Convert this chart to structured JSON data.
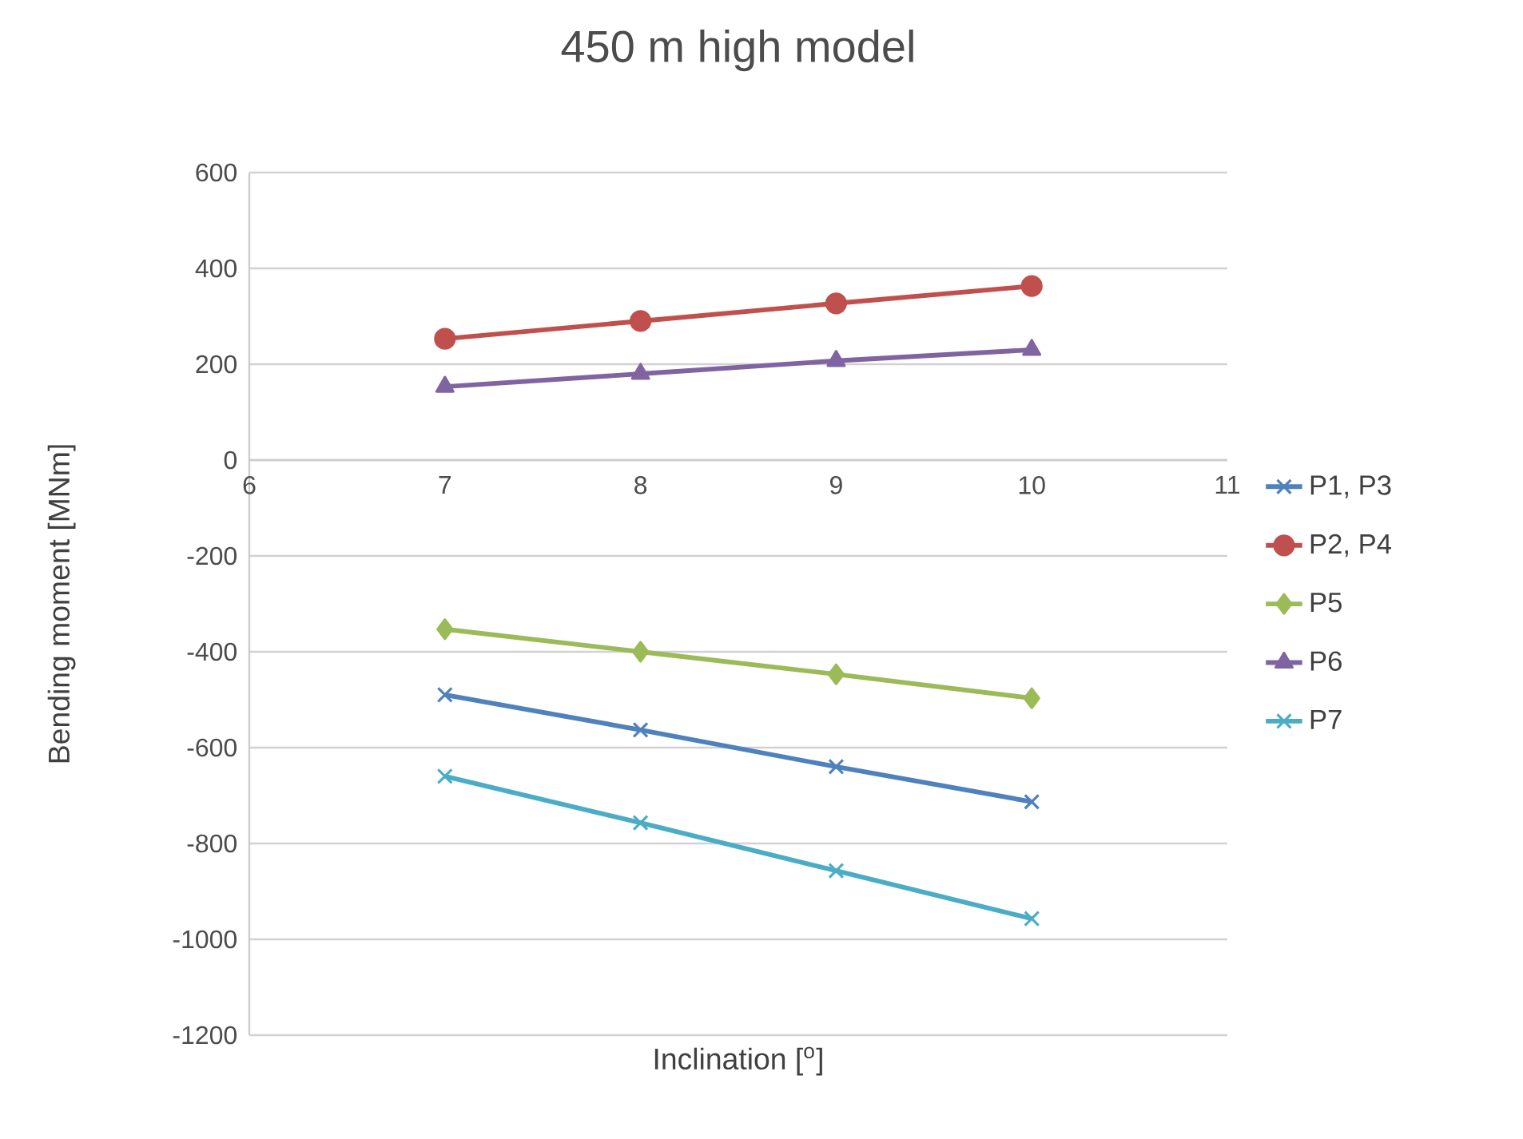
{
  "chart_data": {
    "type": "line",
    "title": "450 m high model",
    "xlabel": "Inclination [$^{o}$]",
    "ylabel": "Bending moment [MNm]",
    "x": [
      7,
      8,
      9,
      10
    ],
    "series": [
      {
        "name": "P1, P3",
        "color": "#4f81bd",
        "marker": "cross",
        "values": [
          -490,
          -563,
          -640,
          -713
        ]
      },
      {
        "name": "P2, P4",
        "color": "#c0504d",
        "marker": "circle",
        "values": [
          253,
          290,
          327,
          363
        ]
      },
      {
        "name": "P5",
        "color": "#9bbb59",
        "marker": "diamond",
        "values": [
          -353,
          -400,
          -447,
          -497
        ]
      },
      {
        "name": "P6",
        "color": "#8064a2",
        "marker": "triangle",
        "values": [
          153,
          180,
          207,
          230
        ]
      },
      {
        "name": "P7",
        "color": "#4bacc6",
        "marker": "cross",
        "values": [
          -660,
          -757,
          -857,
          -957
        ]
      }
    ],
    "xlim": [
      6,
      11
    ],
    "xticks": [
      6,
      7,
      8,
      9,
      10,
      11
    ],
    "ylim": [
      -1200,
      600
    ],
    "yticks": [
      -1200,
      -1000,
      -800,
      -600,
      -400,
      -200,
      0,
      200,
      400,
      600
    ],
    "grid": "y",
    "legend": "right",
    "line_style": "solid"
  }
}
